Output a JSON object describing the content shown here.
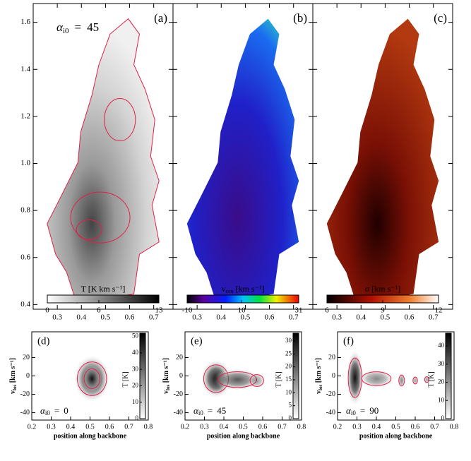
{
  "top": {
    "xlim": [
      0.2,
      0.78
    ],
    "ylim": [
      0.38,
      1.68
    ],
    "xticks": [
      0.3,
      0.4,
      0.5,
      0.6,
      0.7
    ],
    "yticks": [
      0.4,
      0.6,
      0.8,
      {
        "value": 1,
        "label": "1.0"
      },
      1.2,
      1.4,
      1.6
    ],
    "annotation": {
      "symbol": "α",
      "sub": "i0",
      "eq": "=",
      "value": 45
    },
    "panels": [
      {
        "letter": "(a)",
        "colorbar": {
          "label": "T [K km s⁻¹]",
          "ticks": [
            0,
            6,
            13
          ],
          "lim": [
            0,
            13
          ]
        }
      },
      {
        "letter": "(b)",
        "colorbar": {
          "label": "v",
          "label_sub": "cen",
          "label_rest": " [km s⁻¹]",
          "ticks": [
            -10,
            10,
            31
          ],
          "lim": [
            -10,
            31
          ]
        }
      },
      {
        "letter": "(c)",
        "colorbar": {
          "label": "σ [km s⁻¹]",
          "ticks": [
            6,
            9,
            12
          ],
          "lim": [
            6,
            12
          ]
        }
      }
    ]
  },
  "bottom": {
    "xlim": [
      0.2,
      0.8
    ],
    "ylim": [
      -48,
      48
    ],
    "xticks": [
      0.2,
      0.3,
      0.4,
      0.5,
      0.6,
      0.7,
      0.8
    ],
    "yticks": [
      -40,
      -20,
      0,
      20
    ],
    "xlabel": "position along backbone",
    "ylabel": "v",
    "ylabel_sub": "los",
    "ylabel_rest": " [km s⁻¹]",
    "cbar_label": "T [K]",
    "alpha_symbol": "α",
    "alpha_sub": "i0",
    "alpha_eq": "=",
    "panels": [
      {
        "letter": "(d)",
        "alpha": 0,
        "cbar_ticks": [
          0,
          10,
          20,
          30,
          40,
          50
        ],
        "cbar_lim": [
          0,
          52
        ]
      },
      {
        "letter": "(e)",
        "alpha": 45,
        "cbar_ticks": [
          0,
          5,
          10,
          15,
          20,
          25,
          30
        ],
        "cbar_lim": [
          0,
          33
        ]
      },
      {
        "letter": "(f)",
        "alpha": 90,
        "cbar_ticks": [
          0,
          10,
          20,
          30,
          40
        ],
        "cbar_lim": [
          0,
          47
        ]
      }
    ]
  }
}
